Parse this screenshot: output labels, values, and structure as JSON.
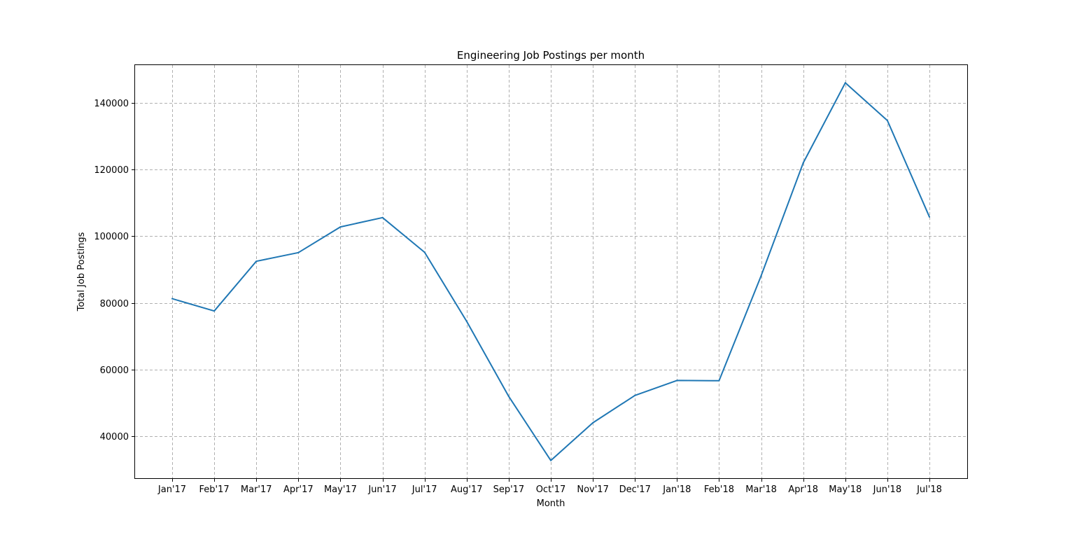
{
  "chart_data": {
    "type": "line",
    "title": "Engineering Job Postings per month",
    "xlabel": "Month",
    "ylabel": "Total Job Postings",
    "categories": [
      "Jan'17",
      "Feb'17",
      "Mar'17",
      "Apr'17",
      "May'17",
      "Jun'17",
      "Jul'17",
      "Aug'17",
      "Sep'17",
      "Oct'17",
      "Nov'17",
      "Dec'17",
      "Jan'18",
      "Feb'18",
      "Mar'18",
      "Apr'18",
      "May'18",
      "Jun'18",
      "Jul'18"
    ],
    "series": [
      {
        "values": [
          81300,
          77600,
          92500,
          95100,
          102800,
          105600,
          95200,
          74500,
          52000,
          32800,
          44100,
          52300,
          56800,
          56700,
          88200,
          122000,
          146000,
          134700,
          105800
        ]
      }
    ],
    "ylim": [
      27500,
      151300
    ],
    "yticks": [
      40000,
      60000,
      80000,
      100000,
      120000,
      140000
    ],
    "ytick_labels": [
      "40000",
      "60000",
      "80000",
      "100000",
      "120000",
      "140000"
    ],
    "grid": true,
    "line_color": "#1f77b4"
  }
}
